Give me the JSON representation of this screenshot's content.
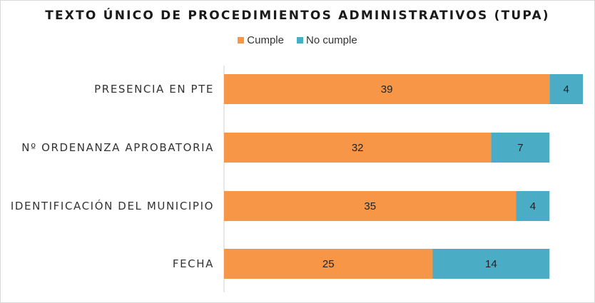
{
  "chart_data": {
    "type": "bar",
    "orientation": "horizontal",
    "stacked": true,
    "title": "TEXTO ÚNICO DE PROCEDIMIENTOS ADMINISTRATIVOS (TUPA)",
    "categories": [
      "PRESENCIA EN PTE",
      "Nº ORDENANZA APROBATORIA",
      "IDENTIFICACIÓN DEL MUNICIPIO",
      "FECHA"
    ],
    "series": [
      {
        "name": "Cumple",
        "values": [
          39,
          32,
          35,
          25
        ],
        "color": "#f79646"
      },
      {
        "name": "No cumple",
        "values": [
          4,
          7,
          4,
          14
        ],
        "color": "#4bacc6"
      }
    ],
    "xlim": [
      0,
      43
    ],
    "legend_position": "top",
    "grid": false
  }
}
